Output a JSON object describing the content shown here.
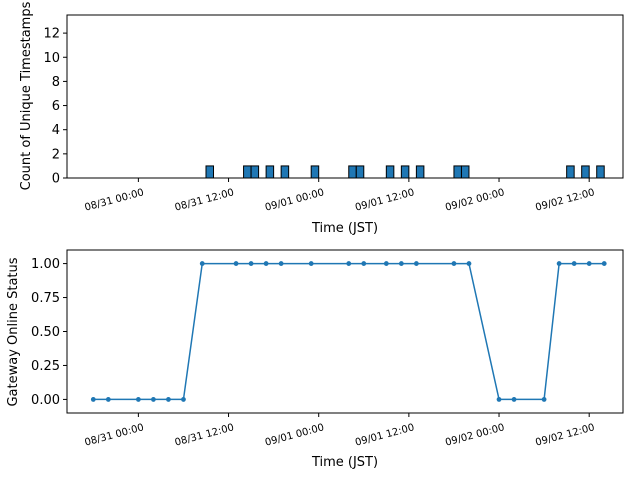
{
  "chart_data": [
    {
      "type": "bar",
      "xlabel": "Time (JST)",
      "ylabel": "Count of Unique Timestamps",
      "ylim": [
        0,
        13.5
      ],
      "y_ticks": [
        "0",
        "2",
        "4",
        "6",
        "8",
        "10",
        "12"
      ],
      "y_tick_values": [
        0,
        2,
        4,
        6,
        8,
        10,
        12
      ],
      "x_tick_labels": [
        "08/31 00:00",
        "08/31 12:00",
        "09/01 00:00",
        "09/01 12:00",
        "09/02 00:00",
        "09/02 12:00"
      ],
      "x_tick_hours": [
        0,
        12,
        24,
        36,
        48,
        60
      ],
      "x_range_hours": [
        -9.5,
        64.5
      ],
      "bars": [
        {
          "hour": 9,
          "value": 1
        },
        {
          "hour": 14,
          "value": 1
        },
        {
          "hour": 15,
          "value": 1
        },
        {
          "hour": 17,
          "value": 1
        },
        {
          "hour": 19,
          "value": 1
        },
        {
          "hour": 23,
          "value": 1
        },
        {
          "hour": 28,
          "value": 1
        },
        {
          "hour": 29,
          "value": 1
        },
        {
          "hour": 33,
          "value": 1
        },
        {
          "hour": 35,
          "value": 1
        },
        {
          "hour": 37,
          "value": 1
        },
        {
          "hour": 42,
          "value": 1
        },
        {
          "hour": 43,
          "value": 1
        },
        {
          "hour": 57,
          "value": 1
        },
        {
          "hour": 59,
          "value": 1
        },
        {
          "hour": 61,
          "value": 1
        }
      ],
      "bar_color": "#1f77b4"
    },
    {
      "type": "line",
      "xlabel": "Time (JST)",
      "ylabel": "Gateway Online Status",
      "ylim": [
        -0.1,
        1.1
      ],
      "y_ticks": [
        "0.00",
        "0.25",
        "0.50",
        "0.75",
        "1.00"
      ],
      "y_tick_values": [
        0,
        0.25,
        0.5,
        0.75,
        1
      ],
      "x_tick_labels": [
        "08/31 00:00",
        "08/31 12:00",
        "09/01 00:00",
        "09/01 12:00",
        "09/02 00:00",
        "09/02 12:00"
      ],
      "x_tick_hours": [
        0,
        12,
        24,
        36,
        48,
        60
      ],
      "x_range_hours": [
        -9.5,
        64.5
      ],
      "points": [
        {
          "hour": -6,
          "value": 0
        },
        {
          "hour": -4,
          "value": 0
        },
        {
          "hour": 0,
          "value": 0
        },
        {
          "hour": 2,
          "value": 0
        },
        {
          "hour": 4,
          "value": 0
        },
        {
          "hour": 6,
          "value": 0
        },
        {
          "hour": 8.5,
          "value": 1
        },
        {
          "hour": 13,
          "value": 1
        },
        {
          "hour": 15,
          "value": 1
        },
        {
          "hour": 17,
          "value": 1
        },
        {
          "hour": 19,
          "value": 1
        },
        {
          "hour": 23,
          "value": 1
        },
        {
          "hour": 28,
          "value": 1
        },
        {
          "hour": 30,
          "value": 1
        },
        {
          "hour": 33,
          "value": 1
        },
        {
          "hour": 35,
          "value": 1
        },
        {
          "hour": 37,
          "value": 1
        },
        {
          "hour": 42,
          "value": 1
        },
        {
          "hour": 44,
          "value": 1
        },
        {
          "hour": 48,
          "value": 0
        },
        {
          "hour": 50,
          "value": 0
        },
        {
          "hour": 54,
          "value": 0
        },
        {
          "hour": 56,
          "value": 1
        },
        {
          "hour": 58,
          "value": 1
        },
        {
          "hour": 60,
          "value": 1
        },
        {
          "hour": 62,
          "value": 1
        }
      ],
      "line_color": "#1f77b4"
    }
  ]
}
